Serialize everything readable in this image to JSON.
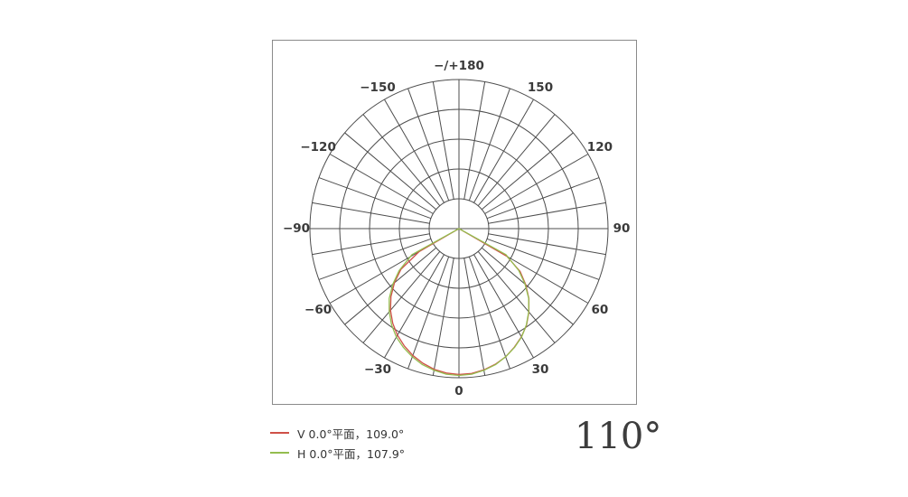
{
  "colors": {
    "background": "#ffffff",
    "box_border": "#8a8a8a",
    "grid": "#4d4d4d",
    "tick_label": "#3a3a3a",
    "series_v": "#cf5148",
    "series_h": "#94bd4f"
  },
  "chart_data": {
    "type": "line",
    "polar": true,
    "angle_zero_position": "bottom",
    "angle_tick_step_deg": 10,
    "radial_rings": 5,
    "radial_max": 1.0,
    "grid": true,
    "legend_position": "bottom-left",
    "angle_labels": [
      {
        "angle": 0,
        "text": "0"
      },
      {
        "angle": 30,
        "text": "30"
      },
      {
        "angle": 60,
        "text": "60"
      },
      {
        "angle": 90,
        "text": "90"
      },
      {
        "angle": 120,
        "text": "120"
      },
      {
        "angle": 150,
        "text": "150"
      },
      {
        "angle": 180,
        "text": "−/+180"
      },
      {
        "angle": -150,
        "text": "−150"
      },
      {
        "angle": -120,
        "text": "−120"
      },
      {
        "angle": -90,
        "text": "−90"
      },
      {
        "angle": -60,
        "text": "−60"
      },
      {
        "angle": -30,
        "text": "−30"
      }
    ],
    "series": [
      {
        "name": "V 0.0°平面，109.0°",
        "plane": "V 0.0°",
        "beam_angle": "109.0°",
        "color": "#cf5148",
        "angles_deg": [
          -90,
          -60,
          -55,
          -50,
          -45,
          -40,
          -35,
          -30,
          -25,
          -20,
          -15,
          -10,
          -5,
          0,
          5,
          10,
          15,
          20,
          25,
          30,
          35,
          40,
          45,
          50,
          55,
          60,
          90
        ],
        "values": [
          0,
          0.31,
          0.475,
          0.565,
          0.645,
          0.715,
          0.775,
          0.825,
          0.868,
          0.905,
          0.935,
          0.958,
          0.972,
          0.978,
          0.975,
          0.962,
          0.942,
          0.915,
          0.878,
          0.838,
          0.79,
          0.73,
          0.663,
          0.585,
          0.5,
          0.37,
          0
        ]
      },
      {
        "name": "H 0.0°平面，107.9°",
        "plane": "H 0.0°",
        "beam_angle": "107.9°",
        "color": "#94bd4f",
        "angles_deg": [
          -90,
          -61,
          -55,
          -50,
          -45,
          -40,
          -35,
          -30,
          -25,
          -20,
          -15,
          -10,
          -5,
          0,
          5,
          10,
          15,
          20,
          25,
          30,
          35,
          40,
          45,
          50,
          55,
          61,
          90
        ],
        "values": [
          0,
          0.36,
          0.49,
          0.578,
          0.662,
          0.728,
          0.788,
          0.84,
          0.88,
          0.915,
          0.945,
          0.965,
          0.98,
          0.985,
          0.98,
          0.965,
          0.945,
          0.915,
          0.88,
          0.84,
          0.788,
          0.728,
          0.662,
          0.578,
          0.49,
          0.36,
          0
        ]
      }
    ]
  },
  "footer": {
    "beam_angle": "110°"
  }
}
